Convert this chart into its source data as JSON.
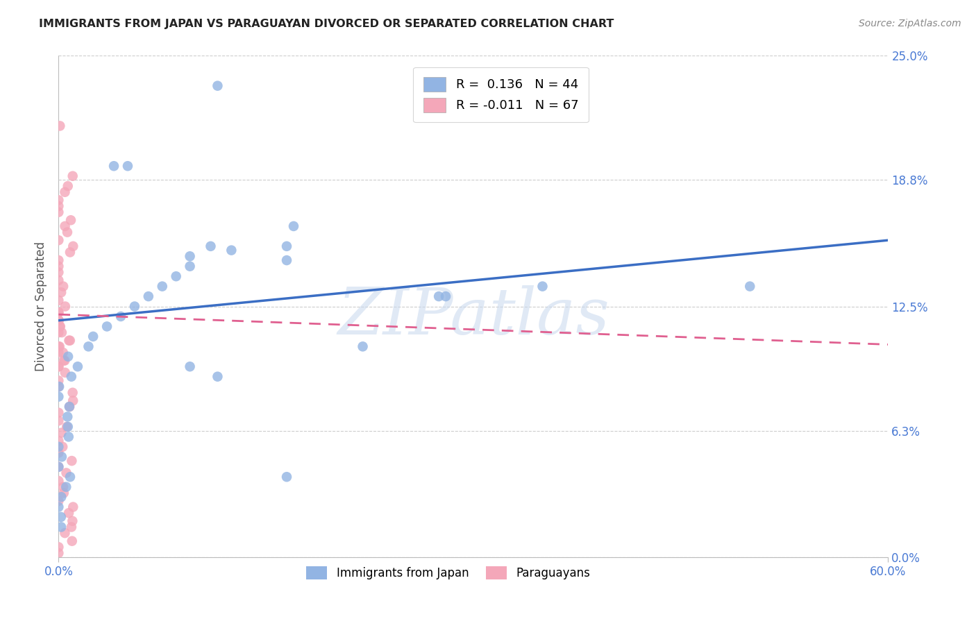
{
  "title": "IMMIGRANTS FROM JAPAN VS PARAGUAYAN DIVORCED OR SEPARATED CORRELATION CHART",
  "source": "Source: ZipAtlas.com",
  "ylabel": "Divorced or Separated",
  "xlim": [
    0.0,
    0.6
  ],
  "ylim": [
    0.0,
    0.25
  ],
  "blue_R": 0.136,
  "blue_N": 44,
  "pink_R": -0.011,
  "pink_N": 67,
  "legend_label_blue": "Immigrants from Japan",
  "legend_label_pink": "Paraguayans",
  "blue_color": "#92b4e3",
  "pink_color": "#f4a7b9",
  "blue_line_color": "#3b6ec4",
  "pink_line_color": "#e06090",
  "watermark": "ZIPatlas",
  "ylabel_ticks": [
    "0.0%",
    "6.3%",
    "12.5%",
    "18.8%",
    "25.0%"
  ],
  "ylabel_vals": [
    0.0,
    0.063,
    0.125,
    0.188,
    0.25
  ],
  "blue_trend_x": [
    0.0,
    0.6
  ],
  "blue_trend_y": [
    0.118,
    0.158
  ],
  "pink_trend_x": [
    0.0,
    0.6
  ],
  "pink_trend_y": [
    0.121,
    0.106
  ],
  "blue_x": [
    0.115,
    0.05,
    0.17,
    0.04,
    0.11,
    0.125,
    0.095,
    0.095,
    0.085,
    0.075,
    0.065,
    0.055,
    0.045,
    0.035,
    0.025,
    0.018,
    0.012,
    0.008,
    0.006,
    0.004,
    0.004,
    0.004,
    0.004,
    0.004,
    0.004,
    0.004,
    0.004,
    0.004,
    0.004,
    0.004,
    0.004,
    0.004,
    0.004,
    0.004,
    0.275,
    0.5,
    0.28,
    0.165,
    0.165,
    0.22,
    0.35,
    0.165,
    0.115,
    0.095
  ],
  "blue_y": [
    0.235,
    0.195,
    0.165,
    0.195,
    0.155,
    0.153,
    0.15,
    0.145,
    0.14,
    0.135,
    0.13,
    0.125,
    0.12,
    0.115,
    0.11,
    0.105,
    0.1,
    0.095,
    0.09,
    0.085,
    0.08,
    0.075,
    0.07,
    0.065,
    0.06,
    0.055,
    0.05,
    0.045,
    0.04,
    0.035,
    0.03,
    0.025,
    0.02,
    0.015,
    0.13,
    0.135,
    0.13,
    0.155,
    0.148,
    0.105,
    0.135,
    0.04,
    0.09,
    0.095
  ],
  "pink_x": [
    0.003,
    0.003,
    0.003,
    0.003,
    0.003,
    0.003,
    0.003,
    0.003,
    0.003,
    0.003,
    0.003,
    0.003,
    0.003,
    0.003,
    0.003,
    0.003,
    0.003,
    0.003,
    0.003,
    0.003,
    0.003,
    0.003,
    0.003,
    0.003,
    0.003,
    0.003,
    0.003,
    0.003,
    0.003,
    0.003,
    0.003,
    0.003,
    0.003,
    0.003,
    0.003,
    0.003,
    0.003,
    0.003,
    0.003,
    0.003,
    0.003,
    0.003,
    0.003,
    0.003,
    0.003,
    0.003,
    0.003,
    0.003,
    0.003,
    0.003,
    0.003,
    0.003,
    0.003,
    0.003,
    0.003,
    0.003,
    0.003,
    0.003,
    0.003,
    0.003,
    0.003,
    0.003,
    0.003,
    0.003,
    0.003,
    0.003,
    0.003
  ],
  "pink_y": [
    0.215,
    0.19,
    0.185,
    0.182,
    0.178,
    0.175,
    0.172,
    0.168,
    0.165,
    0.162,
    0.158,
    0.155,
    0.152,
    0.148,
    0.145,
    0.142,
    0.138,
    0.135,
    0.132,
    0.128,
    0.125,
    0.122,
    0.118,
    0.115,
    0.112,
    0.108,
    0.105,
    0.102,
    0.098,
    0.095,
    0.092,
    0.088,
    0.085,
    0.082,
    0.078,
    0.075,
    0.072,
    0.068,
    0.065,
    0.062,
    0.058,
    0.055,
    0.052,
    0.048,
    0.045,
    0.042,
    0.038,
    0.035,
    0.032,
    0.028,
    0.025,
    0.022,
    0.018,
    0.015,
    0.012,
    0.008,
    0.005,
    0.002,
    0.122,
    0.118,
    0.115,
    0.112,
    0.108,
    0.105,
    0.102,
    0.098,
    0.095
  ]
}
